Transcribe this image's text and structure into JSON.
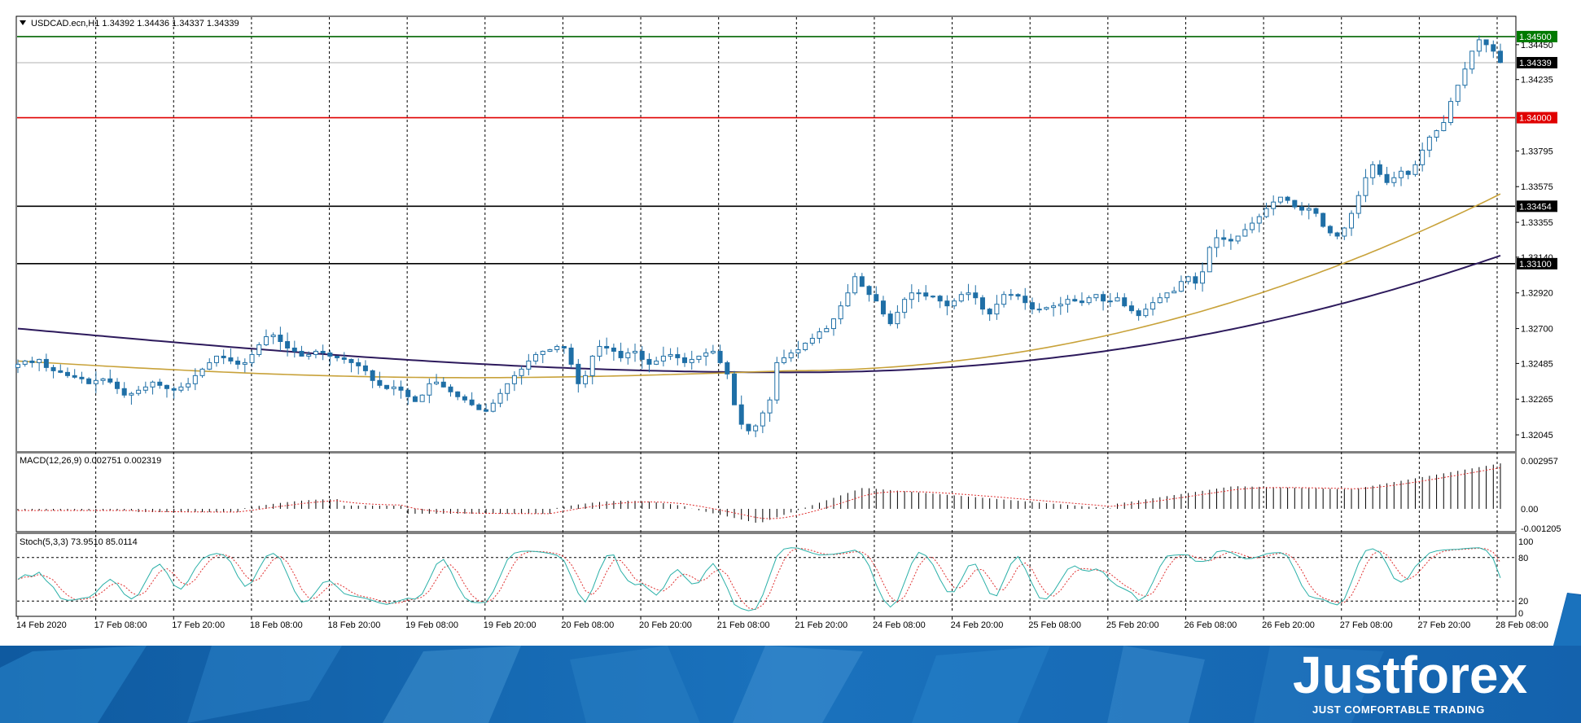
{
  "header": {
    "title": "USDCAD.ecn,H1  1.34392 1.34436 1.34337 1.34339"
  },
  "indicators": {
    "macd_label": "MACD(12,26,9) 0.002751 0.002319",
    "stoch_label": "Stoch(5,3,3) 73.9510 85.0114"
  },
  "brand": {
    "name": "Justforex",
    "tagline": "JUST COMFORTABLE TRADING"
  },
  "colors": {
    "candle": "#1f6fa6",
    "resistance_green": "#006400",
    "level_red": "#e00000",
    "level_black": "#000000",
    "ma_fast": "#c8a23a",
    "ma_slow": "#2d1a5c",
    "stoch_main": "#2ab0a8",
    "stoch_signal": "#e03030",
    "macd_signal": "#e03030",
    "price_tag_green": "#007a00",
    "price_tag_red": "#e00000",
    "banner": "#1a6fb8"
  },
  "chart_data": [
    {
      "type": "candlestick",
      "symbol": "USDCAD.ecn",
      "timeframe": "H1",
      "ohlc_header": {
        "open": 1.34392,
        "high": 1.34436,
        "low": 1.34337,
        "close": 1.34339
      },
      "ylim": [
        1.3195,
        1.3462
      ],
      "price_ticks": [
        "1.34450",
        "1.34235",
        "1.33795",
        "1.33575",
        "1.33355",
        "1.33140",
        "1.32920",
        "1.32700",
        "1.32485",
        "1.32265",
        "1.32045"
      ],
      "x_ticks": [
        "14 Feb 2020",
        "17 Feb 08:00",
        "17 Feb 20:00",
        "18 Feb 08:00",
        "18 Feb 20:00",
        "19 Feb 08:00",
        "19 Feb 20:00",
        "20 Feb 08:00",
        "20 Feb 20:00",
        "21 Feb 08:00",
        "21 Feb 20:00",
        "24 Feb 08:00",
        "24 Feb 20:00",
        "25 Feb 08:00",
        "25 Feb 20:00",
        "26 Feb 08:00",
        "26 Feb 20:00",
        "27 Feb 08:00",
        "27 Feb 20:00",
        "28 Feb 08:00"
      ],
      "horizontal_levels": [
        {
          "value": 1.345,
          "label": "1.34500",
          "color": "green"
        },
        {
          "value": 1.34339,
          "label": "1.34339",
          "color": "gray"
        },
        {
          "value": 1.34,
          "label": "1.34000",
          "color": "red"
        },
        {
          "value": 1.33454,
          "label": "1.33454",
          "color": "black"
        },
        {
          "value": 1.331,
          "label": "1.33100",
          "color": "black"
        }
      ],
      "close": [
        1.3248,
        1.325,
        1.3249,
        1.3251,
        1.3246,
        1.3244,
        1.3243,
        1.3241,
        1.324,
        1.3239,
        1.3236,
        1.3238,
        1.3239,
        1.3237,
        1.3233,
        1.3229,
        1.323,
        1.3232,
        1.3234,
        1.3237,
        1.3235,
        1.3233,
        1.3232,
        1.3234,
        1.3236,
        1.3241,
        1.3245,
        1.3249,
        1.3253,
        1.3252,
        1.325,
        1.3248,
        1.3249,
        1.3254,
        1.326,
        1.3265,
        1.3266,
        1.3262,
        1.3258,
        1.3256,
        1.3253,
        1.3254,
        1.3256,
        1.3255,
        1.3253,
        1.3252,
        1.3251,
        1.3249,
        1.3247,
        1.3244,
        1.3238,
        1.3235,
        1.3233,
        1.3234,
        1.3232,
        1.3228,
        1.3225,
        1.3229,
        1.3236,
        1.3237,
        1.3234,
        1.3231,
        1.3228,
        1.3226,
        1.3223,
        1.322,
        1.3219,
        1.3224,
        1.323,
        1.3236,
        1.3241,
        1.3245,
        1.325,
        1.3254,
        1.3256,
        1.3257,
        1.3259,
        1.3258,
        1.3248,
        1.3236,
        1.3241,
        1.3253,
        1.3259,
        1.3258,
        1.3256,
        1.3252,
        1.3255,
        1.3256,
        1.3251,
        1.3248,
        1.325,
        1.3253,
        1.3254,
        1.3252,
        1.3249,
        1.3251,
        1.3253,
        1.3255,
        1.3256,
        1.3249,
        1.3242,
        1.3223,
        1.3211,
        1.3207,
        1.321,
        1.3218,
        1.3226,
        1.3249,
        1.3252,
        1.3255,
        1.3257,
        1.3261,
        1.3264,
        1.3268,
        1.327,
        1.3276,
        1.3284,
        1.3292,
        1.3302,
        1.3296,
        1.3291,
        1.3287,
        1.3279,
        1.3273,
        1.328,
        1.3288,
        1.3292,
        1.3292,
        1.329,
        1.329,
        1.3287,
        1.3284,
        1.3287,
        1.3291,
        1.3292,
        1.3289,
        1.3282,
        1.3279,
        1.3285,
        1.3291,
        1.3291,
        1.329,
        1.3286,
        1.3282,
        1.3282,
        1.3283,
        1.3284,
        1.3285,
        1.3288,
        1.3287,
        1.3286,
        1.3289,
        1.3291,
        1.3287,
        1.3287,
        1.3289,
        1.3284,
        1.3281,
        1.3278,
        1.3282,
        1.3286,
        1.3289,
        1.3292,
        1.3293,
        1.3299,
        1.3302,
        1.3298,
        1.3305,
        1.332,
        1.3326,
        1.3325,
        1.3324,
        1.3327,
        1.3331,
        1.3335,
        1.3339,
        1.3344,
        1.3348,
        1.3351,
        1.3349,
        1.3345,
        1.3343,
        1.3344,
        1.3341,
        1.3333,
        1.3329,
        1.3327,
        1.3332,
        1.3341,
        1.3352,
        1.3363,
        1.3371,
        1.3365,
        1.336,
        1.3363,
        1.3367,
        1.3365,
        1.3371,
        1.338,
        1.3388,
        1.3392,
        1.3397,
        1.341,
        1.342,
        1.343,
        1.3441,
        1.3448,
        1.3445,
        1.3441,
        1.3434
      ],
      "ma_fast_series": "orange moving average, rising from approx 1.3250 to 1.3353",
      "ma_slow_series": "dark purple moving average, from approx 1.3270 down to 1.3243 then up to 1.3315"
    },
    {
      "type": "bar",
      "name": "MACD(12,26,9)",
      "main_value": 0.002751,
      "signal_value": 0.002319,
      "ylim": [
        -0.001205,
        0.002957
      ],
      "y_ticks": [
        "0.002957",
        "0.00",
        "-0.001205"
      ],
      "series_shape": "histogram near zero, dips to about -0.0009 around 21 Feb 20:00, rises steadily to 0.0028 at the end; red dotted signal line follows with lag"
    },
    {
      "type": "line",
      "name": "Stoch(5,3,3)",
      "main_value": 73.951,
      "signal_value": 85.0114,
      "ylim": [
        0,
        100
      ],
      "y_ticks": [
        "100",
        "80",
        "20",
        "0"
      ],
      "levels": [
        80,
        20
      ]
    }
  ]
}
